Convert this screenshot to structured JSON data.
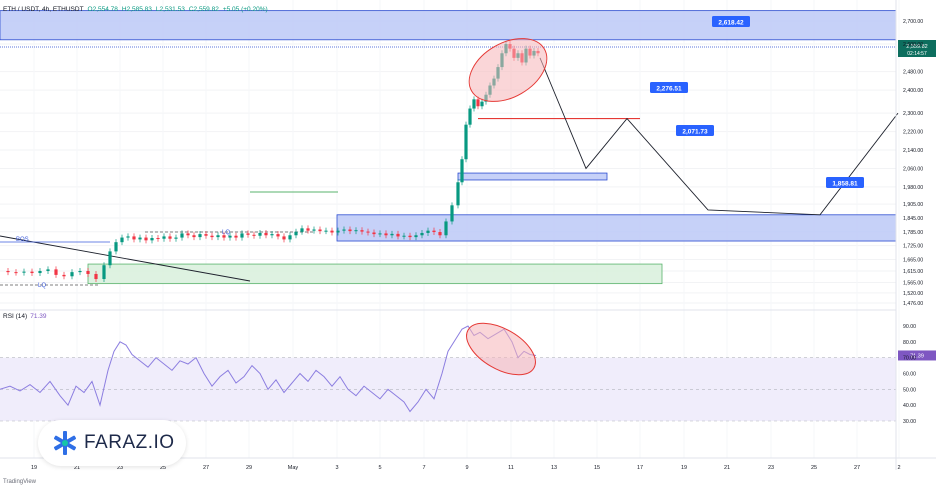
{
  "header": {
    "symbol": "ETH / USDT, 4h, ETHUSDT",
    "o": "O2,554.78",
    "h": "H2,585.83",
    "l": "L2,531.53",
    "c": "C2,559.82",
    "change": "+5.05 (+0.20%)"
  },
  "rsi_header": {
    "label": "RSI (14)",
    "value": "71.39"
  },
  "brand": {
    "logo_text": "FARAZ.IO",
    "footer": "TradingView"
  },
  "colors": {
    "up": "#089981",
    "down": "#f23645",
    "zone_blue": "#bcc9f7",
    "zone_blue_border": "#2a4bd0",
    "zone_green": "#d8f0dc",
    "zone_green_border": "#59b36c",
    "rsi_line": "#8c7ee0",
    "rsi_band": "#f0edfb",
    "highlight_red": "#f5b4b8",
    "label_blue": "#2962ff",
    "line": "#1e222d"
  },
  "chart_data": {
    "type": "candlestick",
    "symbol": "ETH / USDT",
    "timeframe": "4h",
    "price_axis_ticks": [
      "2,700.00",
      "2,600.00",
      "2,480.00",
      "2,400.00",
      "2,300.00",
      "2,220.00",
      "2,140.00",
      "2,060.00",
      "1,980.00",
      "1,905.00",
      "1,845.00",
      "1,785.00",
      "1,725.00",
      "1,665.00",
      "1,615.00",
      "1,565.00",
      "1,520.00",
      "1,476.00"
    ],
    "time_axis_ticks": [
      "19",
      "21",
      "23",
      "25",
      "27",
      "29",
      "May",
      "3",
      "5",
      "7",
      "9",
      "11",
      "13",
      "15",
      "17",
      "19",
      "21",
      "23",
      "25",
      "27",
      "2"
    ],
    "current_price": {
      "value": "2,559.82",
      "countdown": "02:14:57"
    },
    "price_labels": [
      "2,618.42",
      "2,276.51",
      "2,071.73",
      "1,858.81"
    ],
    "annotations": [
      "BOS",
      "LQ",
      "LQ"
    ],
    "zones": [
      {
        "kind": "supply",
        "top": 2800,
        "bottom": 2618.42,
        "color": "blue"
      },
      {
        "kind": "demand",
        "top": 2040,
        "bottom": 2010,
        "color": "blue"
      },
      {
        "kind": "order-block",
        "top": 1858.81,
        "bottom": 1745,
        "color": "blue"
      },
      {
        "kind": "demand",
        "top": 1645,
        "bottom": 1560,
        "color": "green"
      }
    ],
    "projection_path": [
      2540,
      2060,
      2276.51,
      1880,
      1858.81,
      2300
    ],
    "rsi": {
      "period": 14,
      "value": "71.39",
      "ticks": [
        "90.00",
        "80.00",
        "70.00",
        "60.00",
        "50.00",
        "40.00",
        "30.00"
      ],
      "upper_band": 70,
      "lower_band": 30,
      "mid_band": 50
    }
  }
}
